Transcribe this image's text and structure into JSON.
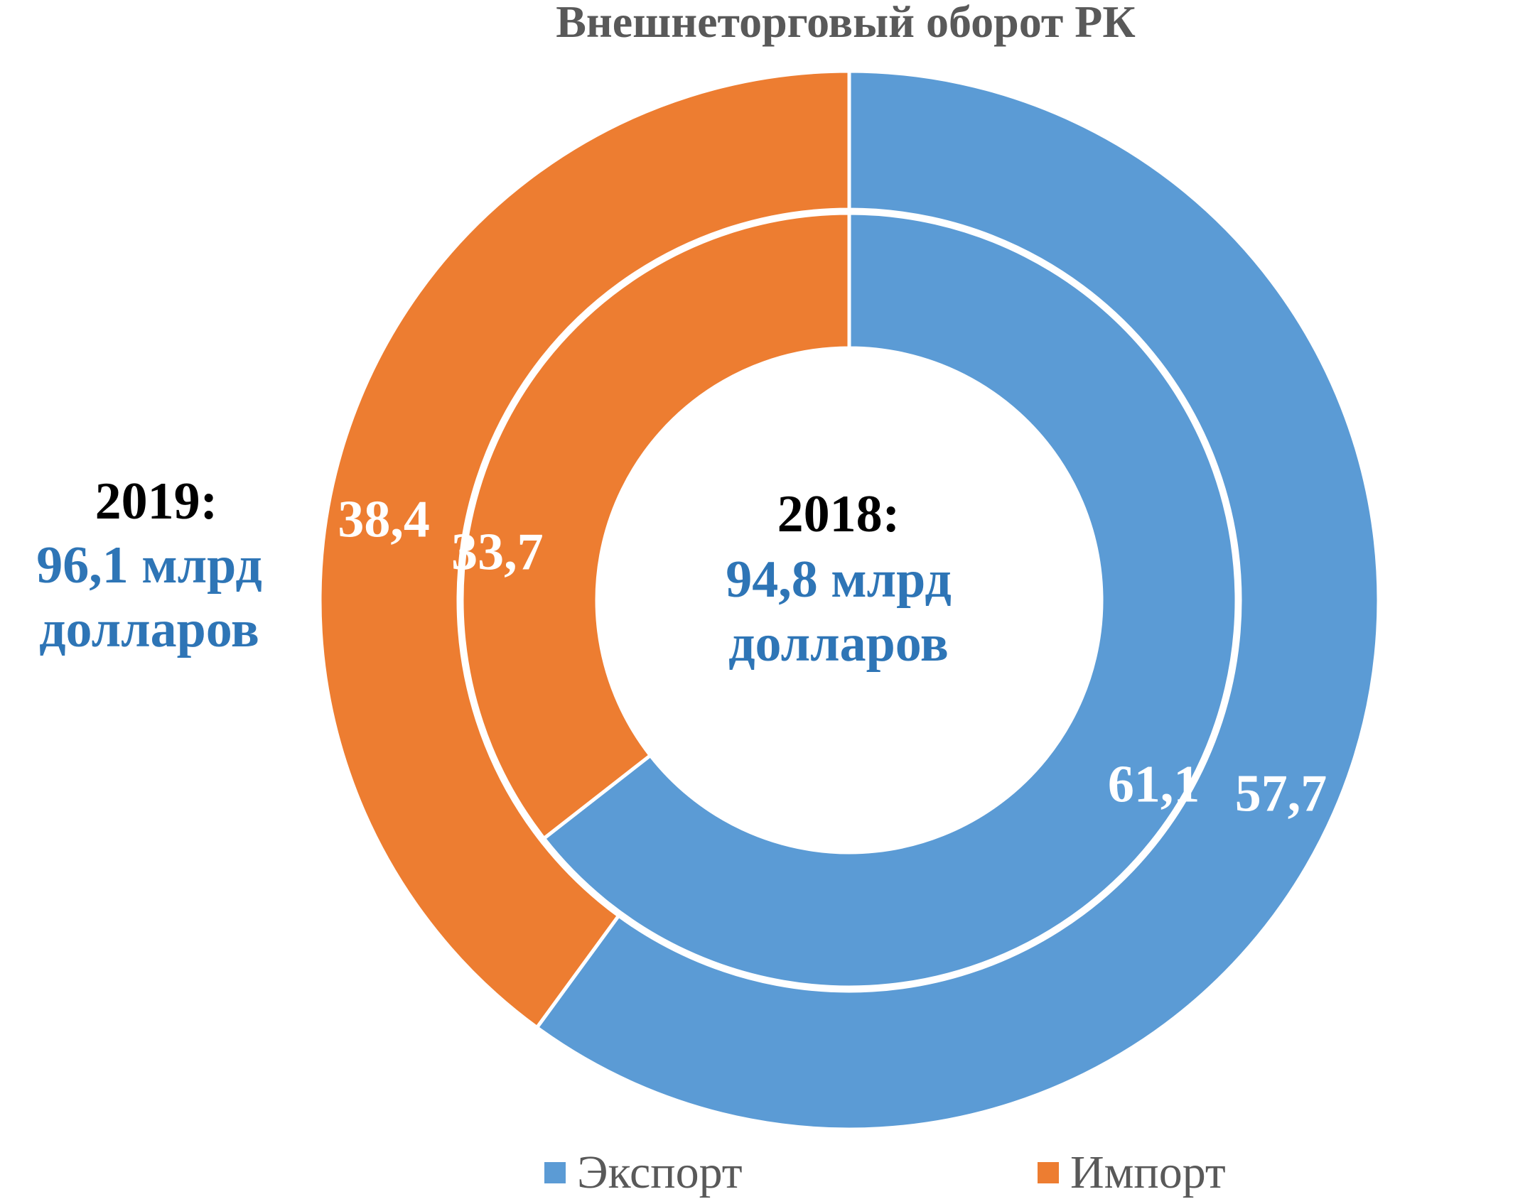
{
  "chart_data": {
    "type": "pie",
    "title": "Внешнеторговый оборот РК",
    "series": [
      {
        "name": "2018",
        "ring": "inner",
        "caption_year": "2018:",
        "caption_total_line1": "94,8 млрд",
        "caption_total_line2": "долларов",
        "slices": [
          {
            "category": "Экспорт",
            "value": 61.1,
            "label": "61,1"
          },
          {
            "category": "Импорт",
            "value": 33.7,
            "label": "33,7"
          }
        ]
      },
      {
        "name": "2019",
        "ring": "outer",
        "caption_year": "2019:",
        "caption_total_line1": "96,1 млрд",
        "caption_total_line2": "долларов",
        "slices": [
          {
            "category": "Экспорт",
            "value": 57.7,
            "label": "57,7"
          },
          {
            "category": "Импорт",
            "value": 38.4,
            "label": "38,4"
          }
        ]
      }
    ],
    "legend": {
      "position": "bottom",
      "items": [
        {
          "name": "Экспорт",
          "color": "#5b9bd5"
        },
        {
          "name": "Импорт",
          "color": "#ed7d31"
        }
      ]
    },
    "colors": {
      "export": "#5b9bd5",
      "import": "#ed7d31",
      "total_text": "#2e75b6"
    }
  }
}
